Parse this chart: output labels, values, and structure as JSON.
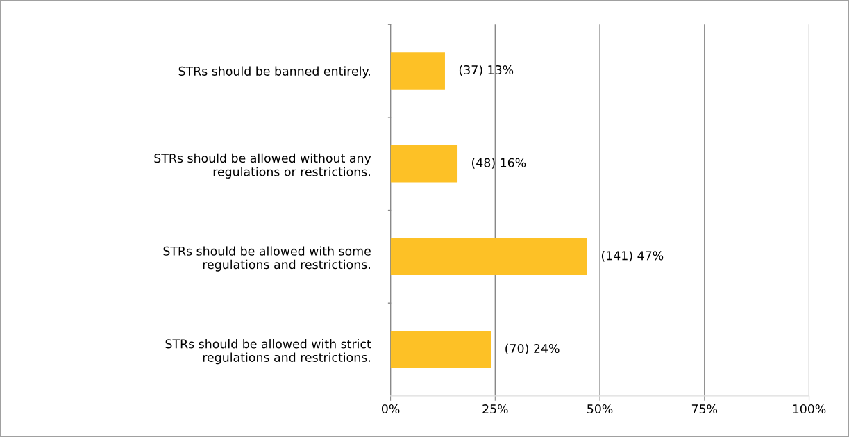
{
  "chart_data": {
    "type": "bar",
    "orientation": "horizontal",
    "categories": [
      "STRs should be banned entirely.",
      "STRs should be allowed without any\nregulations or restrictions.",
      "STRs should be allowed with some\nregulations and restrictions.",
      "STRs should be allowed with strict\nregulations and restrictions."
    ],
    "series": [
      {
        "color": "#fdc126",
        "values": [
          13,
          16,
          47,
          24
        ],
        "value_labels": [
          "(37) 13%",
          "(48) 16%",
          "(141) 47%",
          "(70) 24%"
        ]
      }
    ],
    "xlim": [
      0,
      100
    ],
    "xticks": [
      {
        "value": 0,
        "label": "0%"
      },
      {
        "value": 25,
        "label": "25%"
      },
      {
        "value": 50,
        "label": "50%"
      },
      {
        "value": 75,
        "label": "75%"
      },
      {
        "value": 100,
        "label": "100%"
      }
    ],
    "grid": "x"
  }
}
